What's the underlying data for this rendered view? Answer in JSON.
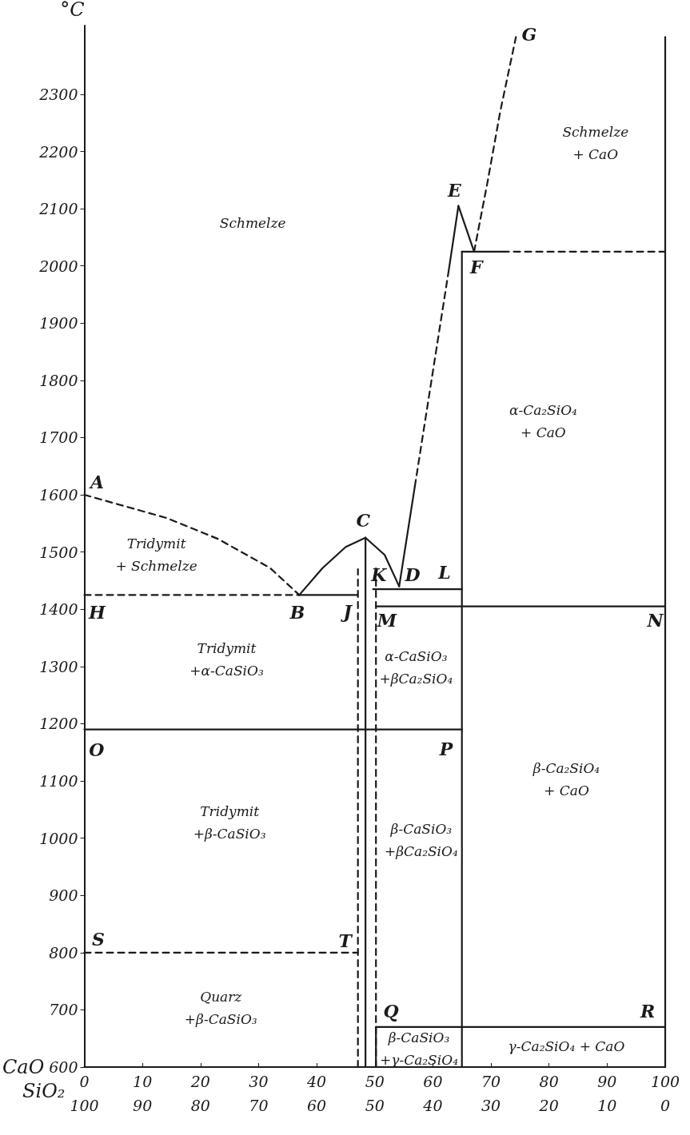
{
  "chart_data": {
    "type": "line",
    "xlabel": "CaO",
    "x2label": "SiO₂",
    "ylabel": "°C",
    "xlim": [
      0,
      100
    ],
    "xticks": [
      0,
      10,
      20,
      30,
      40,
      50,
      60,
      70,
      80,
      90,
      100
    ],
    "x2lim": [
      100,
      0
    ],
    "x2ticks": [
      100,
      90,
      80,
      70,
      60,
      50,
      40,
      30,
      20,
      10,
      0
    ],
    "ylim": [
      600,
      2420
    ],
    "yticks": [
      600,
      700,
      800,
      900,
      1000,
      1100,
      1200,
      1300,
      1400,
      1500,
      1600,
      1700,
      1800,
      1900,
      2000,
      2100,
      2200,
      2300
    ],
    "grid": false,
    "marker": "none",
    "series": [
      {
        "color": "#1a1a1a",
        "line_style": "dashed",
        "x": [
          0,
          14,
          23,
          32,
          37
        ],
        "values": [
          1600,
          1560,
          1523,
          1472,
          1425
        ]
      },
      {
        "color": "#1a1a1a",
        "line_style": "dashed",
        "x": [
          0,
          37
        ],
        "values": [
          1425,
          1425
        ]
      },
      {
        "color": "#1a1a1a",
        "line_style": "solid",
        "x": [
          37,
          47
        ],
        "values": [
          1425,
          1425
        ]
      },
      {
        "color": "#1a1a1a",
        "line_style": "solid",
        "x": [
          37,
          41,
          45,
          48.4
        ],
        "values": [
          1425,
          1472,
          1509,
          1525
        ]
      },
      {
        "color": "#1a1a1a",
        "line_style": "solid",
        "x": [
          48.4,
          51.7,
          54.2
        ],
        "values": [
          1525,
          1495,
          1440
        ]
      },
      {
        "color": "#1a1a1a",
        "line_style": "solid",
        "x": [
          54.2,
          56.9
        ],
        "values": [
          1440,
          1615
        ]
      },
      {
        "color": "#1a1a1a",
        "line_style": "dashed",
        "x": [
          56.9,
          62.7
        ],
        "values": [
          1615,
          1990
        ]
      },
      {
        "color": "#1a1a1a",
        "line_style": "solid",
        "x": [
          62.7,
          64.4
        ],
        "values": [
          1990,
          2105
        ]
      },
      {
        "color": "#1a1a1a",
        "line_style": "solid",
        "x": [
          64.4,
          67.1
        ],
        "values": [
          2105,
          2025
        ]
      },
      {
        "color": "#1a1a1a",
        "line_style": "solid",
        "x": [
          65,
          72
        ],
        "values": [
          2025,
          2025
        ]
      },
      {
        "color": "#1a1a1a",
        "line_style": "dashed",
        "x": [
          72,
          100
        ],
        "values": [
          2025,
          2025
        ]
      },
      {
        "color": "#1a1a1a",
        "line_style": "dashed",
        "x": [
          67.1,
          69.4,
          71.6,
          74.3
        ],
        "values": [
          2025,
          2146,
          2270,
          2400
        ]
      },
      {
        "color": "#1a1a1a",
        "line_style": "solid",
        "x": [
          65,
          65
        ],
        "values": [
          600,
          2025
        ]
      },
      {
        "color": "#1a1a1a",
        "line_style": "solid",
        "x": [
          49.7,
          65
        ],
        "values": [
          1435,
          1435
        ]
      },
      {
        "color": "#1a1a1a",
        "line_style": "solid",
        "x": [
          50.2,
          100
        ],
        "values": [
          1405,
          1405
        ]
      },
      {
        "color": "#1a1a1a",
        "line_style": "solid",
        "x": [
          0,
          65
        ],
        "values": [
          1190,
          1190
        ]
      },
      {
        "color": "#1a1a1a",
        "line_style": "dashed",
        "x": [
          0,
          47.1
        ],
        "values": [
          800,
          800
        ]
      },
      {
        "color": "#1a1a1a",
        "line_style": "solid",
        "x": [
          48.4,
          48.4
        ],
        "values": [
          600,
          1525
        ]
      },
      {
        "color": "#1a1a1a",
        "line_style": "dashed",
        "x": [
          47.1,
          47.1
        ],
        "values": [
          600,
          1470
        ]
      },
      {
        "color": "#1a1a1a",
        "line_style": "dashed",
        "x": [
          50.2,
          50.2
        ],
        "values": [
          600,
          1475
        ]
      },
      {
        "color": "#1a1a1a",
        "line_style": "solid",
        "x": [
          50.2,
          100
        ],
        "values": [
          670,
          670
        ]
      },
      {
        "color": "#1a1a1a",
        "line_style": "solid",
        "x": [
          50.2,
          50.2
        ],
        "values": [
          600,
          670
        ]
      },
      {
        "color": "#1a1a1a",
        "line_style": "solid",
        "x": [
          100,
          100
        ],
        "values": [
          600,
          2400
        ]
      }
    ],
    "annotations": [
      "A",
      "B",
      "C",
      "D",
      "E",
      "F",
      "G",
      "H",
      "J",
      "K",
      "L",
      "M",
      "N",
      "O",
      "P",
      "Q",
      "R",
      "S",
      "T",
      "Schmelze",
      "Schmelze\n+ CaO",
      "α-Ca₂SiO₄\n+ CaO",
      "Tridymit\n+ Schmelze",
      "Tridymit\n+α-CaSiO₃",
      "Tridymit\n+β-CaSiO₃",
      "Quarz\n+β-CaSiO₃",
      "α-CaSiO₃\n+βCa₂SiO₄",
      "β-CaSiO₃\n+βCa₂SiO₄",
      "β-CaSiO₃\n+γ-Ca₂SiO₄",
      "γ-Ca₂SiO₄ + CaO",
      "β-Ca₂SiO₄\n+ CaO"
    ]
  }
}
